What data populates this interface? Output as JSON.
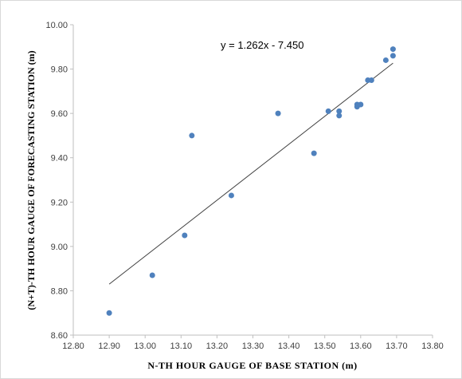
{
  "chart_data": {
    "type": "scatter",
    "xlabel": "N-TH HOUR GAUGE OF BASE STATION (m)",
    "ylabel": "(N+T)-TH HOUR GAUGE OF FORECASTING STATION (m)",
    "xlim": [
      12.8,
      13.8
    ],
    "ylim": [
      8.6,
      10.0
    ],
    "x_ticks": [
      "12.80",
      "12.90",
      "13.00",
      "13.10",
      "13.20",
      "13.30",
      "13.40",
      "13.50",
      "13.60",
      "13.70",
      "13.80"
    ],
    "y_ticks": [
      "8.60",
      "8.80",
      "9.00",
      "9.20",
      "9.40",
      "9.60",
      "9.80",
      "10.00"
    ],
    "grid": false,
    "legend": "none",
    "series": [
      {
        "color": "#4f81bd",
        "points": [
          {
            "x": 12.9,
            "y": 8.7
          },
          {
            "x": 13.02,
            "y": 8.87
          },
          {
            "x": 13.11,
            "y": 9.05
          },
          {
            "x": 13.13,
            "y": 9.5
          },
          {
            "x": 13.24,
            "y": 9.23
          },
          {
            "x": 13.37,
            "y": 9.6
          },
          {
            "x": 13.47,
            "y": 9.42
          },
          {
            "x": 13.51,
            "y": 9.61
          },
          {
            "x": 13.54,
            "y": 9.61
          },
          {
            "x": 13.54,
            "y": 9.59
          },
          {
            "x": 13.59,
            "y": 9.63
          },
          {
            "x": 13.59,
            "y": 9.64
          },
          {
            "x": 13.6,
            "y": 9.64
          },
          {
            "x": 13.62,
            "y": 9.75
          },
          {
            "x": 13.63,
            "y": 9.75
          },
          {
            "x": 13.67,
            "y": 9.84
          },
          {
            "x": 13.69,
            "y": 9.86
          },
          {
            "x": 13.69,
            "y": 9.89
          }
        ]
      }
    ],
    "trendline": {
      "slope": 1.262,
      "intercept": -7.45,
      "x_range": [
        12.9,
        13.69
      ],
      "color": "#404040",
      "label": "y = 1.262x - 7.450"
    }
  }
}
